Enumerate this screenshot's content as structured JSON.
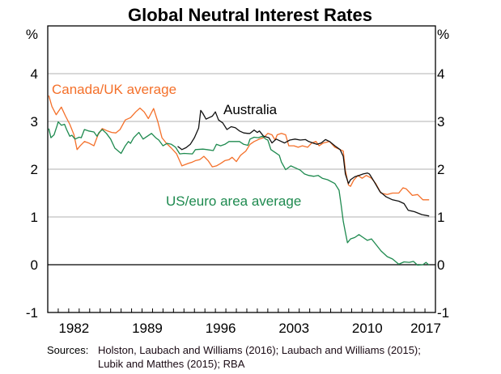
{
  "chart_data": {
    "type": "line",
    "title": "Global Neutral Interest Rates",
    "ylabel_left": "%",
    "ylabel_right": "%",
    "xlim": [
      1980,
      2017
    ],
    "ylim": [
      -1,
      5
    ],
    "yticks": [
      -1,
      0,
      1,
      2,
      3,
      4
    ],
    "xtick_labels": [
      "1982",
      "1989",
      "1996",
      "2003",
      "2010",
      "2017"
    ],
    "grid": "horizontal",
    "colors": {
      "canada_uk": "#f4702a",
      "australia": "#111111",
      "us_euro": "#1e8a4f",
      "grid": "#b0b0b0"
    },
    "series": [
      {
        "name": "Canada/UK average",
        "color": "#f4702a",
        "points": [
          [
            1980.1,
            3.54
          ],
          [
            1980.4,
            3.31
          ],
          [
            1980.8,
            3.14
          ],
          [
            1981.3,
            3.3
          ],
          [
            1981.7,
            3.11
          ],
          [
            1982.1,
            2.94
          ],
          [
            1982.5,
            2.72
          ],
          [
            1982.8,
            2.41
          ],
          [
            1983.1,
            2.49
          ],
          [
            1983.5,
            2.58
          ],
          [
            1983.9,
            2.55
          ],
          [
            1984.4,
            2.49
          ],
          [
            1984.8,
            2.72
          ],
          [
            1985.2,
            2.85
          ],
          [
            1985.7,
            2.8
          ],
          [
            1986.1,
            2.77
          ],
          [
            1986.5,
            2.76
          ],
          [
            1986.9,
            2.83
          ],
          [
            1987.4,
            3.03
          ],
          [
            1987.9,
            3.08
          ],
          [
            1988.4,
            3.2
          ],
          [
            1988.8,
            3.28
          ],
          [
            1989.2,
            3.2
          ],
          [
            1989.6,
            3.06
          ],
          [
            1990.1,
            3.27
          ],
          [
            1990.5,
            3.0
          ],
          [
            1990.9,
            2.66
          ],
          [
            1991.3,
            2.55
          ],
          [
            1991.8,
            2.44
          ],
          [
            1992.3,
            2.32
          ],
          [
            1992.8,
            2.07
          ],
          [
            1993.4,
            2.12
          ],
          [
            1993.8,
            2.15
          ],
          [
            1994.1,
            2.18
          ],
          [
            1994.5,
            2.2
          ],
          [
            1994.9,
            2.27
          ],
          [
            1995.3,
            2.18
          ],
          [
            1995.7,
            2.05
          ],
          [
            1996.1,
            2.07
          ],
          [
            1996.5,
            2.12
          ],
          [
            1996.9,
            2.18
          ],
          [
            1997.3,
            2.2
          ],
          [
            1997.6,
            2.25
          ],
          [
            1998.0,
            2.16
          ],
          [
            1998.4,
            2.29
          ],
          [
            1998.9,
            2.38
          ],
          [
            1999.3,
            2.52
          ],
          [
            1999.7,
            2.58
          ],
          [
            2000.2,
            2.63
          ],
          [
            2000.6,
            2.66
          ],
          [
            2001.0,
            2.75
          ],
          [
            2001.4,
            2.72
          ],
          [
            2001.7,
            2.61
          ],
          [
            2001.9,
            2.72
          ],
          [
            2002.3,
            2.75
          ],
          [
            2002.7,
            2.72
          ],
          [
            2003.0,
            2.49
          ],
          [
            2003.5,
            2.49
          ],
          [
            2003.9,
            2.46
          ],
          [
            2004.3,
            2.49
          ],
          [
            2004.8,
            2.46
          ],
          [
            2005.2,
            2.55
          ],
          [
            2005.6,
            2.58
          ],
          [
            2005.9,
            2.49
          ],
          [
            2006.3,
            2.55
          ],
          [
            2006.9,
            2.58
          ],
          [
            2007.4,
            2.46
          ],
          [
            2007.9,
            2.41
          ],
          [
            2008.2,
            2.38
          ],
          [
            2008.4,
            1.98
          ],
          [
            2008.7,
            1.67
          ],
          [
            2008.9,
            1.64
          ],
          [
            2009.2,
            1.77
          ],
          [
            2009.6,
            1.87
          ],
          [
            2010.0,
            1.81
          ],
          [
            2010.4,
            1.87
          ],
          [
            2010.9,
            1.81
          ],
          [
            2011.3,
            1.7
          ],
          [
            2011.8,
            1.5
          ],
          [
            2012.4,
            1.47
          ],
          [
            2012.9,
            1.5
          ],
          [
            2013.5,
            1.5
          ],
          [
            2013.9,
            1.61
          ],
          [
            2014.2,
            1.59
          ],
          [
            2014.8,
            1.45
          ],
          [
            2015.3,
            1.47
          ],
          [
            2015.8,
            1.36
          ],
          [
            2016.4,
            1.36
          ]
        ]
      },
      {
        "name": "Australia",
        "color": "#111111",
        "points": [
          [
            1992.4,
            2.48
          ],
          [
            1992.8,
            2.41
          ],
          [
            1993.2,
            2.45
          ],
          [
            1993.6,
            2.52
          ],
          [
            1994.0,
            2.66
          ],
          [
            1994.4,
            2.86
          ],
          [
            1994.6,
            3.23
          ],
          [
            1994.8,
            3.17
          ],
          [
            1995.1,
            3.05
          ],
          [
            1995.4,
            3.08
          ],
          [
            1995.7,
            3.11
          ],
          [
            1996.0,
            3.2
          ],
          [
            1996.3,
            3.03
          ],
          [
            1996.7,
            2.97
          ],
          [
            1997.1,
            2.83
          ],
          [
            1997.5,
            2.89
          ],
          [
            1997.9,
            2.87
          ],
          [
            1998.3,
            2.8
          ],
          [
            1998.7,
            2.76
          ],
          [
            1999.1,
            2.75
          ],
          [
            1999.3,
            2.75
          ],
          [
            1999.7,
            2.82
          ],
          [
            2000.0,
            2.77
          ],
          [
            2000.2,
            2.8
          ],
          [
            2000.6,
            2.69
          ],
          [
            2001.1,
            2.66
          ],
          [
            2001.4,
            2.55
          ],
          [
            2001.8,
            2.63
          ],
          [
            2002.3,
            2.58
          ],
          [
            2002.6,
            2.55
          ],
          [
            2003.1,
            2.61
          ],
          [
            2003.6,
            2.63
          ],
          [
            2004.1,
            2.61
          ],
          [
            2004.6,
            2.62
          ],
          [
            2004.9,
            2.58
          ],
          [
            2005.3,
            2.55
          ],
          [
            2005.7,
            2.52
          ],
          [
            2006.1,
            2.55
          ],
          [
            2006.5,
            2.62
          ],
          [
            2006.9,
            2.58
          ],
          [
            2007.4,
            2.49
          ],
          [
            2007.9,
            2.41
          ],
          [
            2008.2,
            2.27
          ],
          [
            2008.4,
            1.9
          ],
          [
            2008.7,
            1.7
          ],
          [
            2008.9,
            1.78
          ],
          [
            2009.3,
            1.84
          ],
          [
            2009.7,
            1.87
          ],
          [
            2010.1,
            1.9
          ],
          [
            2010.5,
            1.92
          ],
          [
            2010.7,
            1.9
          ],
          [
            2011.1,
            1.76
          ],
          [
            2011.7,
            1.53
          ],
          [
            2012.3,
            1.42
          ],
          [
            2012.9,
            1.36
          ],
          [
            2013.5,
            1.33
          ],
          [
            2014.0,
            1.28
          ],
          [
            2014.4,
            1.14
          ],
          [
            2015.0,
            1.11
          ],
          [
            2015.7,
            1.05
          ],
          [
            2016.4,
            1.02
          ]
        ]
      },
      {
        "name": "US/euro area average",
        "color": "#1e8a4f",
        "points": [
          [
            1980.1,
            2.85
          ],
          [
            1980.3,
            2.66
          ],
          [
            1980.6,
            2.72
          ],
          [
            1980.9,
            2.92
          ],
          [
            1981.0,
            2.99
          ],
          [
            1981.3,
            2.92
          ],
          [
            1981.6,
            2.94
          ],
          [
            1981.8,
            2.83
          ],
          [
            1982.1,
            2.69
          ],
          [
            1982.3,
            2.71
          ],
          [
            1982.6,
            2.63
          ],
          [
            1983.0,
            2.67
          ],
          [
            1983.2,
            2.66
          ],
          [
            1983.5,
            2.83
          ],
          [
            1983.9,
            2.8
          ],
          [
            1984.4,
            2.78
          ],
          [
            1984.7,
            2.69
          ],
          [
            1984.9,
            2.77
          ],
          [
            1985.2,
            2.83
          ],
          [
            1985.6,
            2.75
          ],
          [
            1986.0,
            2.63
          ],
          [
            1986.4,
            2.44
          ],
          [
            1987.0,
            2.33
          ],
          [
            1987.4,
            2.49
          ],
          [
            1987.7,
            2.58
          ],
          [
            1987.9,
            2.54
          ],
          [
            1988.2,
            2.66
          ],
          [
            1988.7,
            2.77
          ],
          [
            1989.1,
            2.63
          ],
          [
            1989.5,
            2.69
          ],
          [
            1989.9,
            2.75
          ],
          [
            1990.3,
            2.66
          ],
          [
            1990.6,
            2.61
          ],
          [
            1991.0,
            2.49
          ],
          [
            1991.4,
            2.54
          ],
          [
            1991.8,
            2.52
          ],
          [
            1992.2,
            2.46
          ],
          [
            1992.6,
            2.32
          ],
          [
            1993.0,
            2.33
          ],
          [
            1993.8,
            2.32
          ],
          [
            1994.1,
            2.41
          ],
          [
            1994.8,
            2.42
          ],
          [
            1995.2,
            2.41
          ],
          [
            1995.8,
            2.39
          ],
          [
            1996.1,
            2.52
          ],
          [
            1996.5,
            2.49
          ],
          [
            1996.9,
            2.52
          ],
          [
            1997.3,
            2.58
          ],
          [
            1997.8,
            2.58
          ],
          [
            1998.3,
            2.58
          ],
          [
            1998.7,
            2.52
          ],
          [
            1999.1,
            2.5
          ],
          [
            1999.3,
            2.63
          ],
          [
            1999.7,
            2.67
          ],
          [
            2000.1,
            2.66
          ],
          [
            2000.5,
            2.69
          ],
          [
            2000.8,
            2.63
          ],
          [
            2001.0,
            2.61
          ],
          [
            2001.3,
            2.41
          ],
          [
            2001.7,
            2.35
          ],
          [
            2002.1,
            2.29
          ],
          [
            2002.3,
            2.15
          ],
          [
            2002.7,
            1.99
          ],
          [
            2003.2,
            2.07
          ],
          [
            2003.6,
            2.03
          ],
          [
            2004.1,
            1.98
          ],
          [
            2004.5,
            1.9
          ],
          [
            2004.9,
            1.87
          ],
          [
            2005.4,
            1.85
          ],
          [
            2005.8,
            1.87
          ],
          [
            2006.2,
            1.81
          ],
          [
            2006.7,
            1.78
          ],
          [
            2007.4,
            1.7
          ],
          [
            2007.8,
            1.56
          ],
          [
            2008.0,
            1.25
          ],
          [
            2008.2,
            0.91
          ],
          [
            2008.4,
            0.68
          ],
          [
            2008.6,
            0.46
          ],
          [
            2008.9,
            0.54
          ],
          [
            2009.3,
            0.57
          ],
          [
            2009.7,
            0.63
          ],
          [
            2010.1,
            0.57
          ],
          [
            2010.5,
            0.51
          ],
          [
            2010.9,
            0.54
          ],
          [
            2011.3,
            0.43
          ],
          [
            2011.8,
            0.29
          ],
          [
            2012.4,
            0.17
          ],
          [
            2012.9,
            0.12
          ],
          [
            2013.5,
            0.01
          ],
          [
            2014.0,
            0.06
          ],
          [
            2014.5,
            0.05
          ],
          [
            2014.9,
            0.07
          ],
          [
            2015.3,
            -0.01
          ],
          [
            2015.8,
            0.0
          ],
          [
            2016.1,
            0.05
          ],
          [
            2016.4,
            -0.01
          ]
        ]
      }
    ],
    "annotations": [
      {
        "text": "Canada/UK average",
        "series": "Canada/UK average"
      },
      {
        "text": "Australia",
        "series": "Australia"
      },
      {
        "text": "US/euro area average",
        "series": "US/euro area average"
      }
    ]
  },
  "footer": {
    "sources_label": "Sources:",
    "sources_text": "Holston, Laubach and Williams (2016); Laubach and Williams (2015); Lubik and Matthes (2015); RBA"
  }
}
